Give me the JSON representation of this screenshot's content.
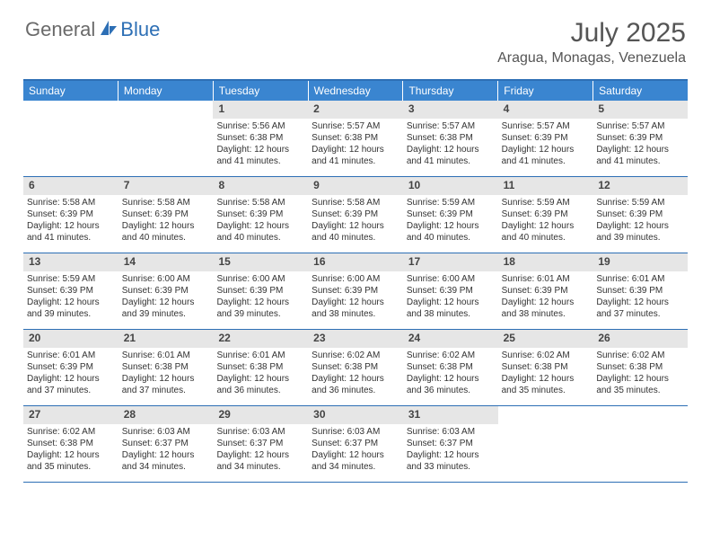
{
  "brand": {
    "general": "General",
    "blue": "Blue"
  },
  "title": "July 2025",
  "location": "Aragua, Monagas, Venezuela",
  "weekdays": [
    "Sunday",
    "Monday",
    "Tuesday",
    "Wednesday",
    "Thursday",
    "Friday",
    "Saturday"
  ],
  "colors": {
    "header_bar": "#3a85d0",
    "accent": "#2d6fb5",
    "daynum_bg": "#e6e6e6",
    "text": "#333333"
  },
  "weeks": [
    [
      {
        "n": "",
        "sr": "",
        "ss": "",
        "dl": ""
      },
      {
        "n": "",
        "sr": "",
        "ss": "",
        "dl": ""
      },
      {
        "n": "1",
        "sr": "Sunrise: 5:56 AM",
        "ss": "Sunset: 6:38 PM",
        "dl": "Daylight: 12 hours and 41 minutes."
      },
      {
        "n": "2",
        "sr": "Sunrise: 5:57 AM",
        "ss": "Sunset: 6:38 PM",
        "dl": "Daylight: 12 hours and 41 minutes."
      },
      {
        "n": "3",
        "sr": "Sunrise: 5:57 AM",
        "ss": "Sunset: 6:38 PM",
        "dl": "Daylight: 12 hours and 41 minutes."
      },
      {
        "n": "4",
        "sr": "Sunrise: 5:57 AM",
        "ss": "Sunset: 6:39 PM",
        "dl": "Daylight: 12 hours and 41 minutes."
      },
      {
        "n": "5",
        "sr": "Sunrise: 5:57 AM",
        "ss": "Sunset: 6:39 PM",
        "dl": "Daylight: 12 hours and 41 minutes."
      }
    ],
    [
      {
        "n": "6",
        "sr": "Sunrise: 5:58 AM",
        "ss": "Sunset: 6:39 PM",
        "dl": "Daylight: 12 hours and 41 minutes."
      },
      {
        "n": "7",
        "sr": "Sunrise: 5:58 AM",
        "ss": "Sunset: 6:39 PM",
        "dl": "Daylight: 12 hours and 40 minutes."
      },
      {
        "n": "8",
        "sr": "Sunrise: 5:58 AM",
        "ss": "Sunset: 6:39 PM",
        "dl": "Daylight: 12 hours and 40 minutes."
      },
      {
        "n": "9",
        "sr": "Sunrise: 5:58 AM",
        "ss": "Sunset: 6:39 PM",
        "dl": "Daylight: 12 hours and 40 minutes."
      },
      {
        "n": "10",
        "sr": "Sunrise: 5:59 AM",
        "ss": "Sunset: 6:39 PM",
        "dl": "Daylight: 12 hours and 40 minutes."
      },
      {
        "n": "11",
        "sr": "Sunrise: 5:59 AM",
        "ss": "Sunset: 6:39 PM",
        "dl": "Daylight: 12 hours and 40 minutes."
      },
      {
        "n": "12",
        "sr": "Sunrise: 5:59 AM",
        "ss": "Sunset: 6:39 PM",
        "dl": "Daylight: 12 hours and 39 minutes."
      }
    ],
    [
      {
        "n": "13",
        "sr": "Sunrise: 5:59 AM",
        "ss": "Sunset: 6:39 PM",
        "dl": "Daylight: 12 hours and 39 minutes."
      },
      {
        "n": "14",
        "sr": "Sunrise: 6:00 AM",
        "ss": "Sunset: 6:39 PM",
        "dl": "Daylight: 12 hours and 39 minutes."
      },
      {
        "n": "15",
        "sr": "Sunrise: 6:00 AM",
        "ss": "Sunset: 6:39 PM",
        "dl": "Daylight: 12 hours and 39 minutes."
      },
      {
        "n": "16",
        "sr": "Sunrise: 6:00 AM",
        "ss": "Sunset: 6:39 PM",
        "dl": "Daylight: 12 hours and 38 minutes."
      },
      {
        "n": "17",
        "sr": "Sunrise: 6:00 AM",
        "ss": "Sunset: 6:39 PM",
        "dl": "Daylight: 12 hours and 38 minutes."
      },
      {
        "n": "18",
        "sr": "Sunrise: 6:01 AM",
        "ss": "Sunset: 6:39 PM",
        "dl": "Daylight: 12 hours and 38 minutes."
      },
      {
        "n": "19",
        "sr": "Sunrise: 6:01 AM",
        "ss": "Sunset: 6:39 PM",
        "dl": "Daylight: 12 hours and 37 minutes."
      }
    ],
    [
      {
        "n": "20",
        "sr": "Sunrise: 6:01 AM",
        "ss": "Sunset: 6:39 PM",
        "dl": "Daylight: 12 hours and 37 minutes."
      },
      {
        "n": "21",
        "sr": "Sunrise: 6:01 AM",
        "ss": "Sunset: 6:38 PM",
        "dl": "Daylight: 12 hours and 37 minutes."
      },
      {
        "n": "22",
        "sr": "Sunrise: 6:01 AM",
        "ss": "Sunset: 6:38 PM",
        "dl": "Daylight: 12 hours and 36 minutes."
      },
      {
        "n": "23",
        "sr": "Sunrise: 6:02 AM",
        "ss": "Sunset: 6:38 PM",
        "dl": "Daylight: 12 hours and 36 minutes."
      },
      {
        "n": "24",
        "sr": "Sunrise: 6:02 AM",
        "ss": "Sunset: 6:38 PM",
        "dl": "Daylight: 12 hours and 36 minutes."
      },
      {
        "n": "25",
        "sr": "Sunrise: 6:02 AM",
        "ss": "Sunset: 6:38 PM",
        "dl": "Daylight: 12 hours and 35 minutes."
      },
      {
        "n": "26",
        "sr": "Sunrise: 6:02 AM",
        "ss": "Sunset: 6:38 PM",
        "dl": "Daylight: 12 hours and 35 minutes."
      }
    ],
    [
      {
        "n": "27",
        "sr": "Sunrise: 6:02 AM",
        "ss": "Sunset: 6:38 PM",
        "dl": "Daylight: 12 hours and 35 minutes."
      },
      {
        "n": "28",
        "sr": "Sunrise: 6:03 AM",
        "ss": "Sunset: 6:37 PM",
        "dl": "Daylight: 12 hours and 34 minutes."
      },
      {
        "n": "29",
        "sr": "Sunrise: 6:03 AM",
        "ss": "Sunset: 6:37 PM",
        "dl": "Daylight: 12 hours and 34 minutes."
      },
      {
        "n": "30",
        "sr": "Sunrise: 6:03 AM",
        "ss": "Sunset: 6:37 PM",
        "dl": "Daylight: 12 hours and 34 minutes."
      },
      {
        "n": "31",
        "sr": "Sunrise: 6:03 AM",
        "ss": "Sunset: 6:37 PM",
        "dl": "Daylight: 12 hours and 33 minutes."
      },
      {
        "n": "",
        "sr": "",
        "ss": "",
        "dl": ""
      },
      {
        "n": "",
        "sr": "",
        "ss": "",
        "dl": ""
      }
    ]
  ]
}
